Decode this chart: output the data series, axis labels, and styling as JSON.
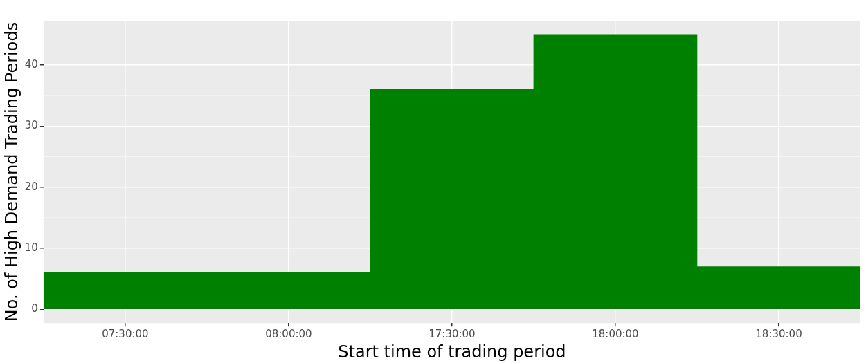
{
  "chart_data": {
    "type": "bar",
    "xlabel": "Start time of trading period",
    "ylabel": "No. of High Demand Trading Periods",
    "categories": [
      "07:30:00",
      "08:00:00",
      "17:30:00",
      "18:00:00",
      "18:30:00"
    ],
    "values": [
      6,
      6,
      36,
      45,
      7
    ],
    "color": "#008000",
    "ylim": [
      -2.25,
      47.25
    ],
    "yticks": [
      0,
      10,
      20,
      30,
      40
    ],
    "grid": true,
    "legend": false
  }
}
